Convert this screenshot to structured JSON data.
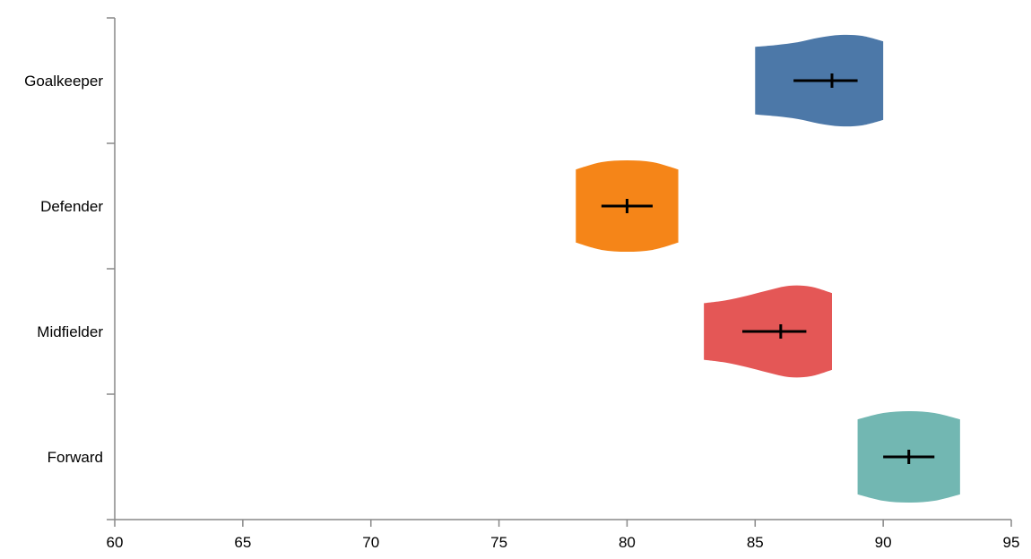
{
  "chart_data": {
    "type": "violin",
    "orientation": "horizontal",
    "xlim": [
      60,
      95
    ],
    "x_ticks": [
      60,
      65,
      70,
      75,
      80,
      85,
      90,
      95
    ],
    "categories": [
      "Goalkeeper",
      "Defender",
      "Midfielder",
      "Forward"
    ],
    "grid": false,
    "legend": "none",
    "series": [
      {
        "category": "Goalkeeper",
        "color": "#4c78a8",
        "min": 85,
        "max": 90,
        "center": 88,
        "whisker_low": 86.5,
        "whisker_high": 89,
        "density_width": [
          0.74,
          0.78,
          0.84,
          0.94,
          1.0,
          0.98,
          0.86
        ]
      },
      {
        "category": "Defender",
        "color": "#f58518",
        "min": 78,
        "max": 82,
        "center": 80,
        "whisker_low": 79,
        "whisker_high": 81,
        "density_width": [
          0.8,
          0.96,
          1.0,
          0.96,
          0.8
        ]
      },
      {
        "category": "Midfielder",
        "color": "#e45756",
        "min": 83,
        "max": 88,
        "center": 86,
        "whisker_low": 84.5,
        "whisker_high": 87,
        "density_width": [
          0.62,
          0.68,
          0.78,
          0.9,
          1.0,
          0.98,
          0.84
        ]
      },
      {
        "category": "Forward",
        "color": "#72b7b2",
        "min": 89,
        "max": 93,
        "center": 91,
        "whisker_low": 90,
        "whisker_high": 92,
        "density_width": [
          0.82,
          0.96,
          1.0,
          0.96,
          0.82
        ]
      }
    ]
  }
}
